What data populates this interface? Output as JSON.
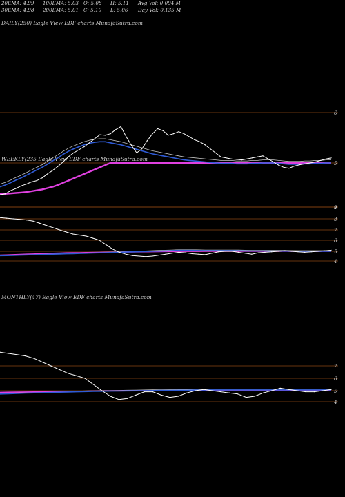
{
  "header": {
    "row1": [
      {
        "label": "20EMA: 4.99"
      },
      {
        "label": "100EMA: 5.03"
      },
      {
        "label": "O: 5.08"
      },
      {
        "label": "H: 5.11"
      },
      {
        "label": "Avg Vol: 0.094 M"
      }
    ],
    "row2": [
      {
        "label": "30EMA: 4.98"
      },
      {
        "label": "200EMA: 5.01"
      },
      {
        "label": "C: 5.10"
      },
      {
        "label": "L: 5.06"
      },
      {
        "label": "Day Vol: 0.135 M"
      }
    ]
  },
  "panels": {
    "daily": {
      "label": "DAILY(250) Eagle  View  EDF charts MunafaSutra.com"
    },
    "weekly": {
      "label": "WEEKLY(235  Eagle  View  EDF charts MunafaSutra.com"
    },
    "monthly": {
      "label": "MONTHLY(47) Eagle  View  EDF charts MunafaSutra.com"
    }
  },
  "colors": {
    "background": "#000000",
    "price": "#ffffff",
    "ema_blue": "#2f5bd6",
    "ema_magenta": "#e040e0",
    "ema_light": "#c8c8c8",
    "level_lines": "#8b4513"
  },
  "chart_data": [
    {
      "type": "line",
      "name": "daily",
      "yticks": [
        "6",
        "5",
        "4"
      ],
      "price_points": [
        4.28,
        4.3,
        4.37,
        4.42,
        4.48,
        4.52,
        4.57,
        4.6,
        4.66,
        4.75,
        4.83,
        4.92,
        5.02,
        5.12,
        5.2,
        5.26,
        5.32,
        5.4,
        5.48,
        5.56,
        5.55,
        5.58,
        5.66,
        5.72,
        5.52,
        5.35,
        5.2,
        5.28,
        5.44,
        5.58,
        5.68,
        5.64,
        5.55,
        5.58,
        5.62,
        5.58,
        5.52,
        5.46,
        5.42,
        5.36,
        5.28,
        5.2,
        5.12,
        5.1,
        5.08,
        5.07,
        5.06,
        5.08,
        5.1,
        5.12,
        5.14,
        5.08,
        5.02,
        4.95,
        4.9,
        4.88,
        4.93,
        4.96,
        4.98,
        5.0,
        5.02,
        5.05,
        5.08,
        5.1
      ],
      "ema_blue": [
        4.46,
        4.5,
        4.55,
        4.61,
        4.66,
        4.72,
        4.78,
        4.84,
        4.9,
        4.97,
        5.04,
        5.1,
        5.17,
        5.23,
        5.28,
        5.32,
        5.36,
        5.39,
        5.41,
        5.42,
        5.42,
        5.4,
        5.38,
        5.36,
        5.33,
        5.3,
        5.27,
        5.24,
        5.21,
        5.18,
        5.16,
        5.14,
        5.12,
        5.1,
        5.08,
        5.06,
        5.05,
        5.04,
        5.03,
        5.02,
        5.01,
        5.0,
        4.99,
        4.99,
        4.99,
        4.98,
        4.98,
        4.98,
        4.99,
        4.99,
        5.0,
        5.0,
        5.0,
        4.99,
        4.98,
        4.97,
        4.97,
        4.97,
        4.98,
        4.98,
        4.99,
        4.99,
        5.0,
        5.0
      ],
      "ema_magenta": [
        4.3,
        4.3,
        4.31,
        4.32,
        4.33,
        4.34,
        4.36,
        4.38,
        4.4,
        4.43,
        4.46,
        4.5,
        4.55,
        4.6,
        4.65,
        4.7,
        4.75,
        4.8,
        4.85,
        4.9,
        4.95,
        5.0,
        5.0,
        5.0,
        5.0,
        5.0,
        5.0,
        5.0,
        5.0,
        5.0,
        5.0,
        5.0,
        5.0,
        5.0,
        5.0,
        5.0,
        5.0,
        5.0,
        5.0,
        5.0,
        5.0,
        5.0,
        5.0,
        5.0,
        5.0,
        5.0,
        5.0,
        5.0,
        5.0,
        5.0,
        5.0,
        5.0,
        5.0,
        5.0,
        5.0,
        5.0,
        5.0,
        5.0,
        5.0,
        5.0,
        5.0,
        5.0,
        5.0,
        5.0
      ]
    },
    {
      "type": "line",
      "name": "weekly",
      "yticks": [
        "9",
        "8",
        "7",
        "6",
        "5",
        "4"
      ],
      "price_points": [
        8.1,
        8.05,
        8.0,
        7.95,
        7.9,
        7.8,
        7.6,
        7.4,
        7.2,
        7.0,
        6.8,
        6.6,
        6.5,
        6.4,
        6.2,
        6.0,
        5.6,
        5.2,
        4.9,
        4.7,
        4.55,
        4.5,
        4.45,
        4.5,
        4.6,
        4.7,
        4.8,
        4.9,
        4.85,
        4.75,
        4.7,
        4.65,
        4.8,
        4.95,
        5.0,
        5.0,
        4.9,
        4.8,
        4.7,
        4.85,
        4.9,
        4.95,
        5.0,
        5.05,
        5.0,
        4.95,
        4.9,
        4.95,
        5.0,
        5.05,
        5.1
      ],
      "ema_blue": [
        4.55,
        4.56,
        4.58,
        4.6,
        4.62,
        4.64,
        4.66,
        4.68,
        4.7,
        4.72,
        4.74,
        4.76,
        4.78,
        4.8,
        4.82,
        4.84,
        4.86,
        4.88,
        4.9,
        4.92,
        4.94,
        4.96,
        4.98,
        5.0,
        5.02,
        5.04,
        5.06,
        5.08,
        5.08,
        5.08,
        5.07,
        5.06,
        5.06,
        5.06,
        5.06,
        5.06,
        5.05,
        5.04,
        5.03,
        5.03,
        5.03,
        5.02,
        5.02,
        5.02,
        5.01,
        5.0,
        5.0,
        5.0,
        5.0,
        5.0,
        5.0
      ],
      "ema_magenta": [
        4.6,
        4.62,
        4.65,
        4.68,
        4.7,
        4.72,
        4.75,
        4.78,
        4.8,
        4.82,
        4.84,
        4.85,
        4.86,
        4.87,
        4.88,
        4.89,
        4.9,
        4.9,
        4.91,
        4.92,
        4.93,
        4.94,
        4.95,
        4.96,
        4.97,
        4.98,
        4.98,
        4.99,
        4.99,
        4.99,
        4.99,
        5.0,
        5.0,
        5.0,
        5.0,
        5.0,
        5.0,
        5.0,
        5.0,
        5.0,
        5.0,
        5.0,
        5.0,
        5.0,
        5.0,
        5.0,
        5.0,
        5.0,
        5.0,
        5.0,
        5.0
      ]
    },
    {
      "type": "line",
      "name": "monthly",
      "yticks": [
        "7",
        "6",
        "5",
        "4"
      ],
      "price_points": [
        8.1,
        8.0,
        7.9,
        7.8,
        7.6,
        7.3,
        7.0,
        6.7,
        6.4,
        6.2,
        6.0,
        5.5,
        5.0,
        4.5,
        4.2,
        4.3,
        4.6,
        4.9,
        4.9,
        4.6,
        4.4,
        4.5,
        4.8,
        5.0,
        5.1,
        5.0,
        4.9,
        4.8,
        4.7,
        4.4,
        4.5,
        4.8,
        5.0,
        5.2,
        5.1,
        5.0,
        4.9,
        4.9,
        5.0,
        5.1
      ],
      "ema_blue": [
        4.7,
        4.72,
        4.75,
        4.78,
        4.8,
        4.82,
        4.84,
        4.86,
        4.88,
        4.9,
        4.92,
        4.94,
        4.95,
        4.96,
        4.97,
        4.98,
        4.99,
        5.0,
        5.01,
        5.02,
        5.03,
        5.04,
        5.04,
        5.05,
        5.05,
        5.06,
        5.06,
        5.06,
        5.06,
        5.06,
        5.06,
        5.06,
        5.06,
        5.06,
        5.06,
        5.06,
        5.06,
        5.06,
        5.06,
        5.06
      ],
      "ema_magenta": [
        4.85,
        4.86,
        4.87,
        4.88,
        4.89,
        4.9,
        4.91,
        4.92,
        4.93,
        4.94,
        4.95,
        4.96,
        4.97,
        4.98,
        4.98,
        4.99,
        4.99,
        5.0,
        5.0,
        5.0,
        5.0,
        5.0,
        5.0,
        5.0,
        5.0,
        5.0,
        5.0,
        5.0,
        5.0,
        5.0,
        5.0,
        5.0,
        5.0,
        5.0,
        5.0,
        5.0,
        5.0,
        5.0,
        5.0,
        5.0
      ]
    }
  ]
}
